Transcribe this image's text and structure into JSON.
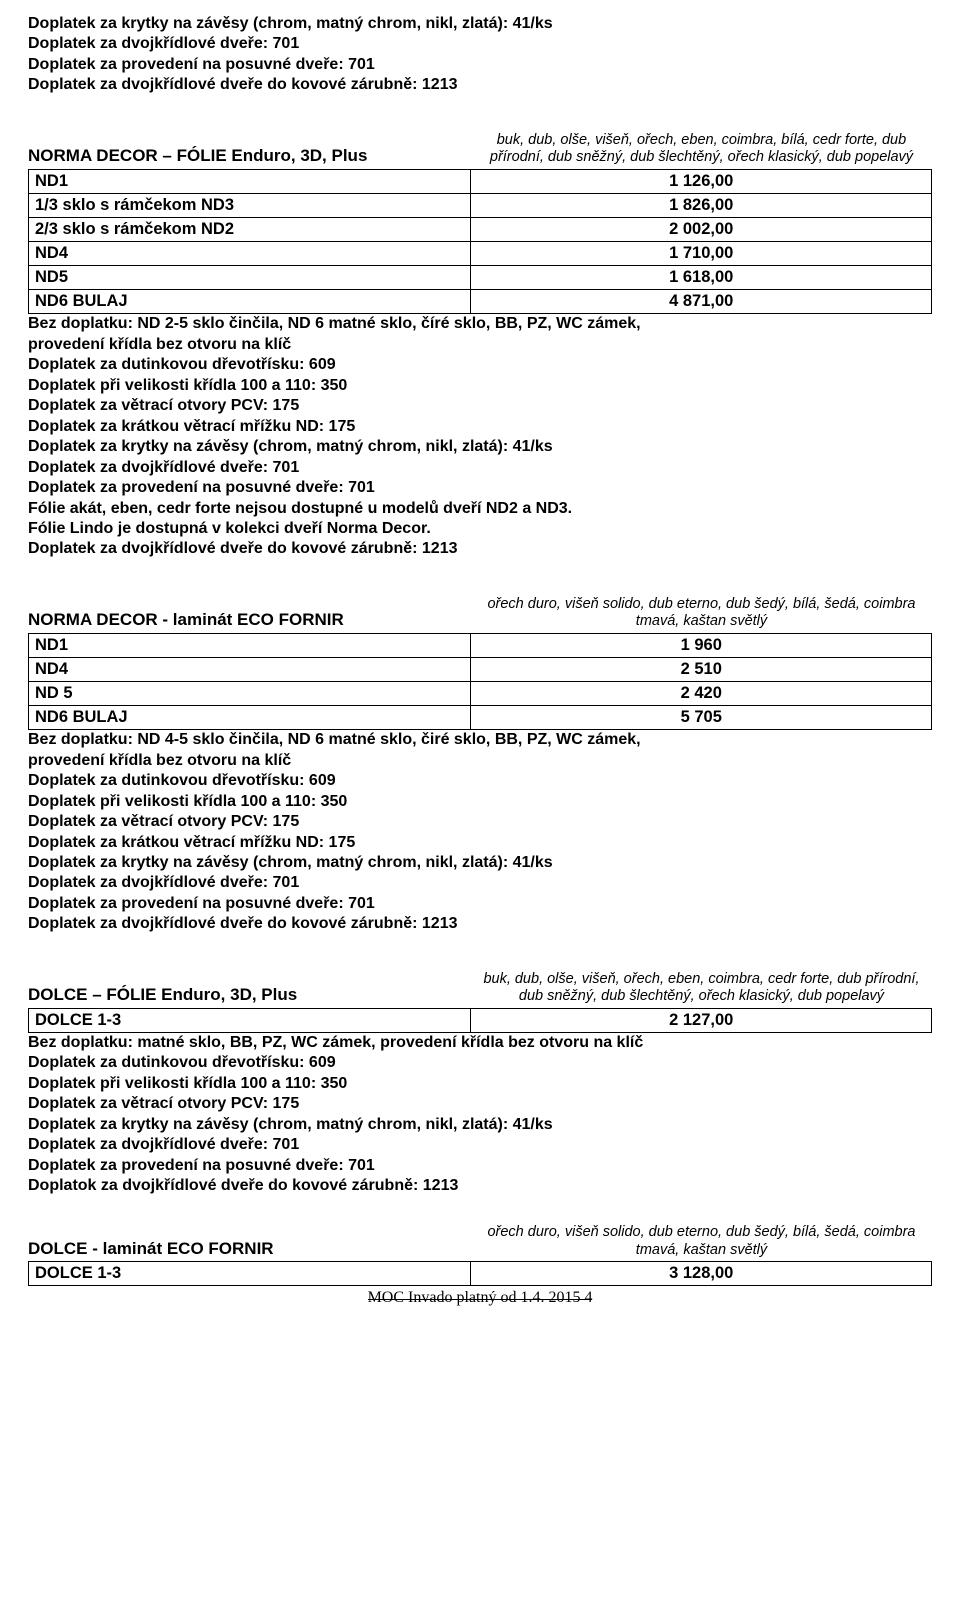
{
  "top_notes": [
    "Doplatek za krytky na závěsy (chrom, matný chrom, nikl, zlatá): 41/ks",
    "Doplatek za dvojkřídlové dveře: 701",
    "Doplatek za provedení na posuvné dveře:  701",
    "Doplatek za dvojkřídlové dveře do kovové zárubně: 1213"
  ],
  "section1": {
    "title": "NORMA DECOR – FÓLIE Enduro, 3D, Plus",
    "subtitle": "buk, dub, olše, višeň, ořech, eben, coimbra, bílá, cedr forte, dub přírodní, dub sněžný, dub šlechtěný, ořech klasický, dub popelavý",
    "rows": [
      {
        "label": "ND1",
        "value": "1 126,00"
      },
      {
        "label": "1/3 sklo s rámčekom ND3",
        "value": "1 826,00"
      },
      {
        "label": "2/3 sklo s rámčekom ND2",
        "value": "2 002,00"
      },
      {
        "label": "ND4",
        "value": "1 710,00"
      },
      {
        "label": "ND5",
        "value": "1 618,00"
      },
      {
        "label": "ND6 BULAJ",
        "value": "4 871,00"
      }
    ],
    "notes": [
      "Bez doplatku: ND 2-5 sklo činčila, ND 6 matné sklo, číré sklo, BB, PZ, WC zámek,",
      "provedení křídla bez otvoru na klíč",
      "Doplatek za dutinkovou dřevotřísku: 609",
      "Doplatek při velikosti křídla 100 a 110: 350",
      "Doplatek za větrací otvory PCV: 175",
      "Doplatek za krátkou větrací mřížku ND: 175",
      "Doplatek za krytky na závěsy (chrom, matný chrom, nikl, zlatá): 41/ks",
      "Doplatek za dvojkřídlové dveře: 701",
      "Doplatek za provedení na posuvné dveře: 701",
      "Fólie akát, eben, cedr forte nejsou dostupné u modelů dveří ND2 a ND3.",
      "Fólie Lindo je dostupná v kolekci dveří Norma Decor.",
      "Doplatek za dvojkřídlové dveře do kovové zárubně: 1213"
    ]
  },
  "section2": {
    "title": "NORMA DECOR - laminát ECO FORNIR",
    "subtitle": "ořech duro, višeň solido, dub eterno, dub šedý, bílá, šedá, coimbra tmavá, kaštan světlý",
    "rows": [
      {
        "label": "ND1",
        "value": "1 960"
      },
      {
        "label": "ND4",
        "value": "2 510"
      },
      {
        "label": "ND 5",
        "value": "2 420"
      },
      {
        "label": "ND6 BULAJ",
        "value": "5 705"
      }
    ],
    "notes": [
      "Bez doplatku: ND 4-5 sklo činčila, ND 6 matné sklo, čiré sklo, BB, PZ, WC zámek,",
      "provedení křídla bez otvoru na klíč",
      "Doplatek za dutinkovou dřevotřísku: 609",
      "Doplatek při velikosti křídla 100 a 110: 350",
      "Doplatek za větrací otvory PCV: 175",
      "Doplatek za krátkou větrací mřížku ND: 175",
      "Doplatek za krytky na závěsy (chrom, matný chrom, nikl, zlatá): 41/ks",
      "Doplatek za dvojkřídlové dveře: 701",
      "Doplatek za provedení na posuvné dveře: 701",
      "Doplatek za dvojkřídlové dveře do kovové zárubně: 1213"
    ]
  },
  "section3": {
    "title": "DOLCE – FÓLIE Enduro, 3D, Plus",
    "subtitle": "buk, dub, olše, višeň, ořech, eben, coimbra, cedr forte, dub přírodní, dub sněžný, dub šlechtěný, ořech klasický, dub popelavý",
    "rows": [
      {
        "label": "DOLCE 1-3",
        "value": "2 127,00"
      }
    ],
    "notes": [
      "Bez doplatku: matné sklo, BB, PZ, WC zámek, provedení křídla bez otvoru na klíč",
      "Doplatek za dutinkovou dřevotřísku: 609",
      "Doplatek při velikosti křídla 100 a 110: 350",
      "Doplatek za větrací otvory PCV: 175",
      "Doplatek za krytky na závěsy (chrom, matný chrom, nikl, zlatá): 41/ks",
      "Doplatek za dvojkřídlové dveře: 701",
      "Doplatek za provedení na posuvné dveře: 701",
      "Doplatok za dvojkřídlové dveře do kovové zárubně: 1213"
    ]
  },
  "section4": {
    "title": "DOLCE - laminát ECO FORNIR",
    "subtitle": "ořech duro, višeň solido, dub eterno, dub šedý, bílá, šedá, coimbra tmavá, kaštan světlý",
    "rows": [
      {
        "label": "DOLCE 1-3",
        "value": "3 128,00"
      }
    ]
  },
  "footer": "MOC Invado platný od 1.4. 2015  4"
}
